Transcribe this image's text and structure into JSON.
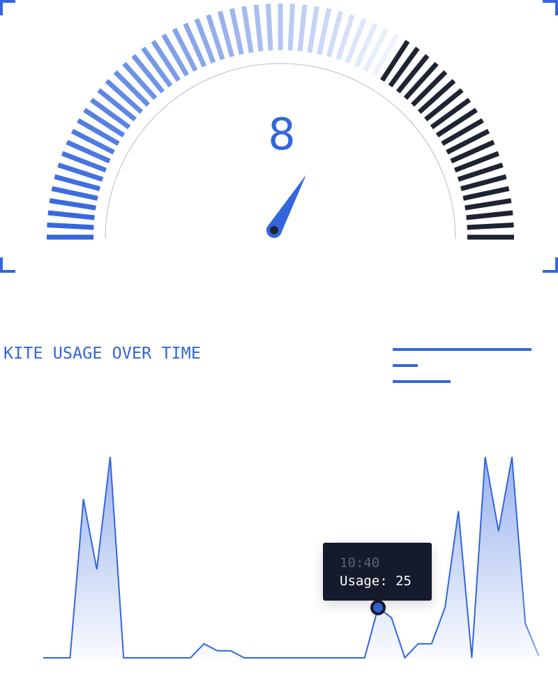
{
  "gauge": {
    "value": "8",
    "value_number": 8,
    "min": 0,
    "max": 12,
    "colors": {
      "active_start": "#3366dd",
      "active_end": "#eef2fc",
      "inactive": "#1f2433",
      "needle": "#3366dd",
      "pivot": "#1f2433"
    }
  },
  "chart_data": {
    "type": "area",
    "title": "KITE USAGE OVER TIME",
    "ylim": [
      0,
      100
    ],
    "values": [
      0,
      0,
      0,
      79,
      44,
      100,
      0,
      0,
      0,
      0,
      0,
      0,
      7,
      3.5,
      3.5,
      0,
      0,
      0,
      0,
      0,
      0,
      0,
      0,
      0,
      0,
      25,
      20,
      0,
      7,
      7,
      25,
      73,
      0,
      100,
      63,
      100,
      17,
      1
    ],
    "highlight_index": 25,
    "tooltip": {
      "time": "10:40",
      "label": "Usage: 25"
    },
    "colors": {
      "line": "#3366dd",
      "fill": "#3366dd"
    },
    "grid": false
  }
}
